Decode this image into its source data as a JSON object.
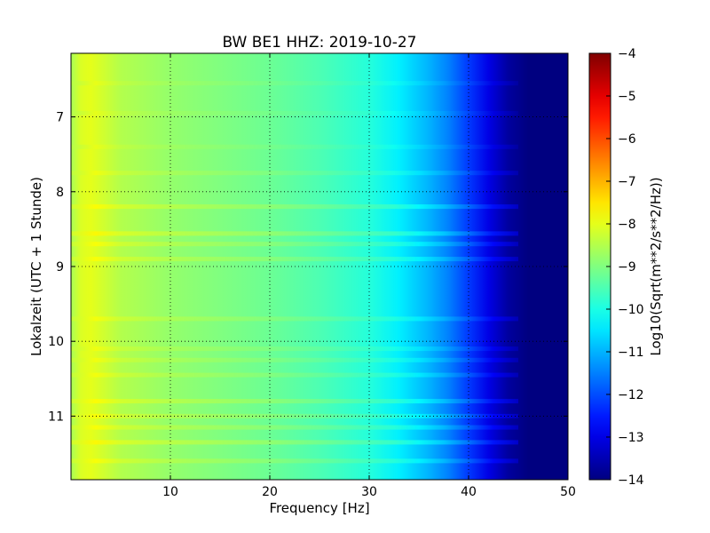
{
  "chart_data": {
    "type": "heatmap",
    "title": "BW BE1 HHZ: 2019-10-27",
    "xlabel": "Frequency [Hz]",
    "ylabel": "Lokalzeit (UTC + 1 Stunde)",
    "xlim": [
      0,
      50
    ],
    "ylim": [
      6.15,
      11.85
    ],
    "y_inverted": true,
    "xticks": [
      10,
      20,
      30,
      40,
      50
    ],
    "yticks": [
      7,
      8,
      9,
      10,
      11
    ],
    "grid": true,
    "colorbar": {
      "label": "Log10(Sqrt(m**2/s**2/Hz))",
      "range": [
        -14,
        -4
      ],
      "ticks": [
        -4,
        -5,
        -6,
        -7,
        -8,
        -9,
        -10,
        -11,
        -12,
        -13,
        -14
      ],
      "colormap": "jet"
    },
    "profile": {
      "frequency_hz": [
        0,
        1,
        2,
        5,
        10,
        15,
        20,
        25,
        30,
        33,
        36,
        38,
        40,
        42,
        44,
        46,
        50
      ],
      "log10_amplitude": [
        -8.6,
        -8.1,
        -8.0,
        -8.5,
        -8.8,
        -9.0,
        -9.2,
        -9.5,
        -9.9,
        -10.4,
        -11.0,
        -11.5,
        -12.2,
        -13.0,
        -13.7,
        -14.0,
        -14.0
      ]
    },
    "bands": [
      {
        "time": 6.55,
        "delta": 0.12
      },
      {
        "time": 6.95,
        "delta": 0.1
      },
      {
        "time": 7.4,
        "delta": 0.12
      },
      {
        "time": 7.75,
        "delta": 0.2
      },
      {
        "time": 8.2,
        "delta": 0.35
      },
      {
        "time": 8.56,
        "delta": 0.4
      },
      {
        "time": 8.7,
        "delta": 0.3
      },
      {
        "time": 8.9,
        "delta": 0.3
      },
      {
        "time": 9.7,
        "delta": 0.25
      },
      {
        "time": 10.1,
        "delta": 0.2
      },
      {
        "time": 10.25,
        "delta": 0.22
      },
      {
        "time": 10.45,
        "delta": 0.25
      },
      {
        "time": 10.8,
        "delta": 0.35
      },
      {
        "time": 11.0,
        "delta": 0.3
      },
      {
        "time": 11.15,
        "delta": 0.3
      },
      {
        "time": 11.35,
        "delta": 0.4
      },
      {
        "time": 11.6,
        "delta": 0.3
      }
    ]
  }
}
